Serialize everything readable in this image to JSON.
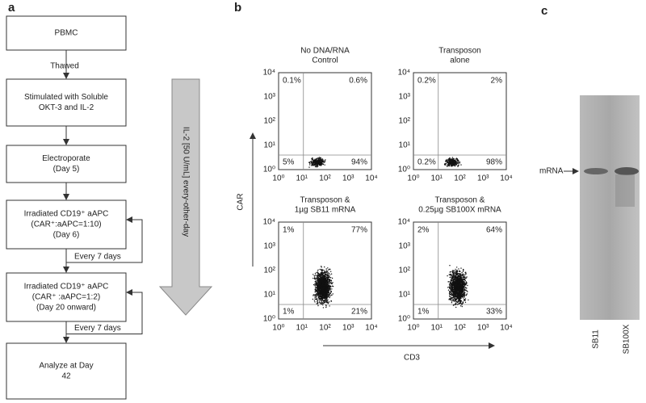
{
  "panel_a": {
    "label": "a",
    "steps": [
      [
        "PBMC"
      ],
      [
        "Stimulated with Soluble",
        "OKT-3 and IL-2"
      ],
      [
        "Electroporate",
        "(Day 5)"
      ],
      [
        "Irradiated CD19⁺ aAPC",
        "(CAR⁺:aAPC=1:10)",
        "(Day 6)"
      ],
      [
        "Irradiated CD19⁺ aAPC",
        "(CAR⁺ :aAPC=1:2)",
        "(Day 20 onward)"
      ],
      [
        "Analyze at Day",
        "42"
      ]
    ],
    "connectors": [
      "Thawed",
      "Every 7 days",
      "Every 7 days"
    ],
    "il2_arrow": "IL-2 [50 U/mL] every-other-day"
  },
  "panel_b": {
    "label": "b",
    "y_axis": "CAR",
    "x_axis": "CD3",
    "tick_labels": [
      "10⁰",
      "10¹",
      "10²",
      "10³",
      "10⁴"
    ],
    "plots": [
      {
        "title": [
          "No DNA/RNA",
          "Control"
        ],
        "quadrants": [
          "0.1%",
          "0.6%",
          "5%",
          "94%"
        ]
      },
      {
        "title": [
          "Transposon",
          "alone"
        ],
        "quadrants": [
          "0.2%",
          "2%",
          "0.2%",
          "98%"
        ]
      },
      {
        "title": [
          "Transposon &",
          "1µg SB11 mRNA"
        ],
        "quadrants": [
          "1%",
          "77%",
          "1%",
          "21%"
        ]
      },
      {
        "title": [
          "Transposon &",
          "0.25µg SB100X mRNA"
        ],
        "quadrants": [
          "2%",
          "64%",
          "1%",
          "33%"
        ]
      }
    ]
  },
  "panel_c": {
    "label": "c",
    "marker": "mRNA",
    "lanes": [
      "SB11",
      "SB100X"
    ]
  }
}
